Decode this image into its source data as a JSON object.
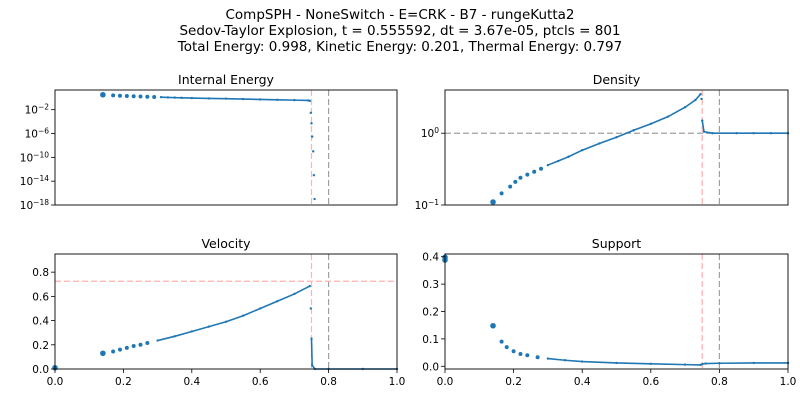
{
  "header": {
    "line1": "CompSPH - NoneSwitch - E=CRK - B7 - rungeKutta2",
    "line2": "Sedov-Taylor Explosion, t = 0.555592, dt = 3.67e-05, ptcls = 801",
    "line3": "Total Energy: 0.998, Kinetic Energy: 0.201, Thermal Energy: 0.797"
  },
  "colors": {
    "series": "#1f77b4",
    "shock_ref": "#ffb0b0",
    "analytic_ref": "#a0a0a0"
  },
  "chart_data": [
    {
      "type": "line",
      "title": "Internal Energy",
      "yscale": "log",
      "xlim": [
        0,
        1
      ],
      "ylim": [
        1e-18,
        20
      ],
      "yticks": [
        1e-18,
        1e-14,
        1e-10,
        1e-06,
        0.01
      ],
      "ytick_labels": [
        "10^-18",
        "10^-14",
        "10^-10",
        "10^-6",
        "10^-2"
      ],
      "xticks": [],
      "vlines": [
        {
          "x": 0.75,
          "color": "shock_ref"
        },
        {
          "x": 0.8,
          "color": "analytic_ref"
        }
      ],
      "hlines": [],
      "series": [
        {
          "points": [
            [
              0.14,
              3.2
            ],
            [
              0.17,
              2.5
            ],
            [
              0.19,
              2.2
            ],
            [
              0.21,
              1.95
            ],
            [
              0.23,
              1.8
            ],
            [
              0.25,
              1.6
            ],
            [
              0.27,
              1.45
            ],
            [
              0.29,
              1.35
            ],
            [
              0.31,
              1.25
            ],
            [
              0.33,
              1.15
            ],
            [
              0.35,
              1.05
            ],
            [
              0.37,
              0.98
            ],
            [
              0.4,
              0.9
            ],
            [
              0.45,
              0.78
            ],
            [
              0.5,
              0.7
            ],
            [
              0.55,
              0.6
            ],
            [
              0.6,
              0.52
            ],
            [
              0.65,
              0.45
            ],
            [
              0.7,
              0.4
            ],
            [
              0.74,
              0.36
            ],
            [
              0.745,
              0.3
            ],
            [
              0.748,
              0.003
            ],
            [
              0.75,
              5e-05
            ],
            [
              0.752,
              3e-07
            ],
            [
              0.755,
              1e-09
            ],
            [
              0.757,
              1e-13
            ],
            [
              0.759,
              1e-17
            ]
          ]
        }
      ]
    },
    {
      "type": "line",
      "title": "Density",
      "yscale": "log",
      "xlim": [
        0,
        1
      ],
      "ylim": [
        0.1,
        4
      ],
      "yticks": [
        0.1,
        1
      ],
      "ytick_labels": [
        "10^-1",
        "10^0"
      ],
      "xticks": [],
      "vlines": [
        {
          "x": 0.75,
          "color": "shock_ref"
        },
        {
          "x": 0.8,
          "color": "analytic_ref"
        }
      ],
      "hlines": [
        {
          "y": 1,
          "color": "analytic_ref"
        }
      ],
      "series": [
        {
          "points": [
            [
              0.14,
              0.11
            ],
            [
              0.165,
              0.145
            ],
            [
              0.19,
              0.18
            ],
            [
              0.205,
              0.21
            ],
            [
              0.22,
              0.24
            ],
            [
              0.24,
              0.265
            ],
            [
              0.26,
              0.29
            ],
            [
              0.28,
              0.32
            ],
            [
              0.3,
              0.36
            ],
            [
              0.33,
              0.41
            ],
            [
              0.36,
              0.47
            ],
            [
              0.4,
              0.58
            ],
            [
              0.45,
              0.72
            ],
            [
              0.5,
              0.88
            ],
            [
              0.55,
              1.1
            ],
            [
              0.6,
              1.35
            ],
            [
              0.65,
              1.7
            ],
            [
              0.7,
              2.3
            ],
            [
              0.73,
              2.9
            ],
            [
              0.745,
              3.5
            ],
            [
              0.748,
              3.0
            ],
            [
              0.75,
              1.5
            ],
            [
              0.755,
              1.05
            ],
            [
              0.78,
              1.0
            ],
            [
              0.85,
              1.0
            ],
            [
              0.9,
              1.0
            ],
            [
              0.95,
              1.0
            ],
            [
              1.0,
              1.0
            ]
          ]
        }
      ]
    },
    {
      "type": "line",
      "title": "Velocity",
      "yscale": "linear",
      "xlim": [
        0,
        1
      ],
      "ylim": [
        0,
        0.95
      ],
      "yticks": [
        0,
        0.2,
        0.4,
        0.6,
        0.8
      ],
      "ytick_labels": [
        "0.0",
        "0.2",
        "0.4",
        "0.6",
        "0.8"
      ],
      "xticks": [
        0,
        0.2,
        0.4,
        0.6,
        0.8,
        1.0
      ],
      "xtick_labels": [
        "0.0",
        "0.2",
        "0.4",
        "0.6",
        "0.8",
        "1.0"
      ],
      "vlines": [
        {
          "x": 0.75,
          "color": "shock_ref"
        },
        {
          "x": 0.8,
          "color": "analytic_ref"
        }
      ],
      "hlines": [
        {
          "y": 0.725,
          "color": "shock_ref"
        }
      ],
      "series": [
        {
          "points": [
            [
              0.0,
              0.01
            ],
            [
              0.14,
              0.13
            ],
            [
              0.17,
              0.145
            ],
            [
              0.19,
              0.16
            ],
            [
              0.21,
              0.175
            ],
            [
              0.23,
              0.19
            ],
            [
              0.25,
              0.2
            ],
            [
              0.27,
              0.215
            ],
            [
              0.3,
              0.235
            ],
            [
              0.35,
              0.27
            ],
            [
              0.4,
              0.31
            ],
            [
              0.45,
              0.35
            ],
            [
              0.5,
              0.39
            ],
            [
              0.55,
              0.44
            ],
            [
              0.6,
              0.5
            ],
            [
              0.65,
              0.56
            ],
            [
              0.7,
              0.62
            ],
            [
              0.745,
              0.685
            ],
            [
              0.748,
              0.5
            ],
            [
              0.75,
              0.25
            ],
            [
              0.752,
              0.03
            ],
            [
              0.76,
              0.0
            ],
            [
              0.8,
              0.0
            ],
            [
              0.9,
              0.0
            ],
            [
              1.0,
              0.0
            ]
          ]
        }
      ]
    },
    {
      "type": "line",
      "title": "Support",
      "yscale": "linear",
      "xlim": [
        0,
        1
      ],
      "ylim": [
        -0.01,
        0.41
      ],
      "yticks": [
        0,
        0.1,
        0.2,
        0.3,
        0.4
      ],
      "ytick_labels": [
        "0.0",
        "0.1",
        "0.2",
        "0.3",
        "0.4"
      ],
      "xticks": [
        0,
        0.2,
        0.4,
        0.6,
        0.8,
        1.0
      ],
      "xtick_labels": [
        "0.0",
        "0.2",
        "0.4",
        "0.6",
        "0.8",
        "1.0"
      ],
      "vlines": [
        {
          "x": 0.75,
          "color": "shock_ref"
        },
        {
          "x": 0.8,
          "color": "analytic_ref"
        }
      ],
      "hlines": [],
      "series": [
        {
          "points": [
            [
              0.0,
              0.398
            ],
            [
              0.0,
              0.388
            ],
            [
              0.14,
              0.148
            ],
            [
              0.165,
              0.09
            ],
            [
              0.18,
              0.07
            ],
            [
              0.2,
              0.055
            ],
            [
              0.22,
              0.045
            ],
            [
              0.24,
              0.04
            ],
            [
              0.27,
              0.033
            ],
            [
              0.3,
              0.028
            ],
            [
              0.35,
              0.022
            ],
            [
              0.4,
              0.017
            ],
            [
              0.5,
              0.012
            ],
            [
              0.6,
              0.009
            ],
            [
              0.7,
              0.006
            ],
            [
              0.745,
              0.005
            ],
            [
              0.75,
              0.008
            ],
            [
              0.76,
              0.01
            ],
            [
              0.8,
              0.011
            ],
            [
              0.9,
              0.012
            ],
            [
              1.0,
              0.012
            ]
          ]
        }
      ]
    }
  ]
}
